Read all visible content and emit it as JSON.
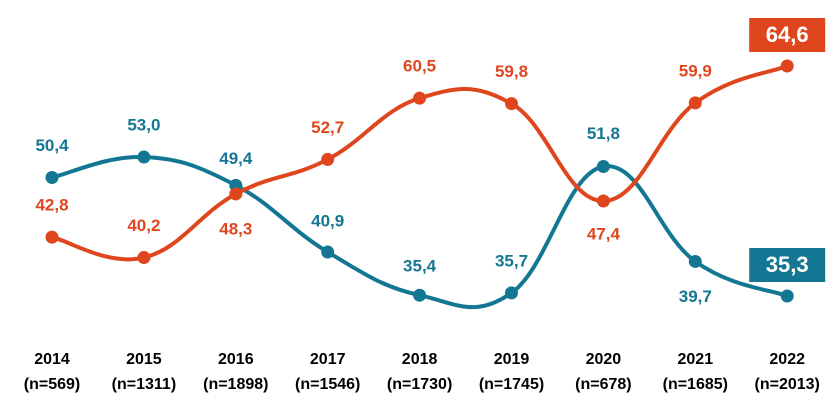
{
  "chart_data": {
    "type": "line",
    "categories": [
      "2014",
      "2015",
      "2016",
      "2017",
      "2018",
      "2019",
      "2020",
      "2021",
      "2022"
    ],
    "category_notes": [
      "(n=569)",
      "(n=1311)",
      "(n=1898)",
      "(n=1546)",
      "(n=1730)",
      "(n=1745)",
      "(n=678)",
      "(n=1685)",
      "(n=2013)"
    ],
    "series": [
      {
        "color": "#137793",
        "values": [
          50.4,
          53.0,
          49.4,
          40.9,
          35.4,
          35.7,
          51.8,
          39.7,
          35.3
        ],
        "value_labels": [
          "50,4",
          "53,0",
          "49,4",
          "40,9",
          "35,4",
          "35,7",
          "51,8",
          "39,7",
          "35,3"
        ]
      },
      {
        "color": "#e0461e",
        "values": [
          42.8,
          40.2,
          48.3,
          52.7,
          60.5,
          59.8,
          47.4,
          59.9,
          64.6
        ],
        "value_labels": [
          "42,8",
          "40,2",
          "48,3",
          "52,7",
          "60,5",
          "59,8",
          "47,4",
          "59,9",
          "64,6"
        ]
      }
    ]
  }
}
